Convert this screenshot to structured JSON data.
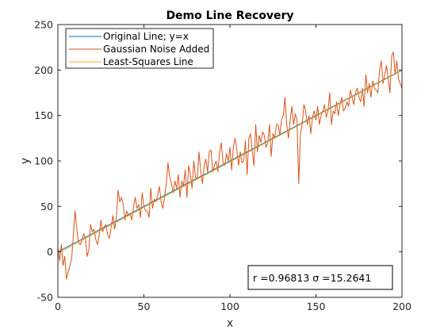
{
  "chart_data": {
    "type": "line",
    "title": "Demo Line Recovery",
    "xlabel": "x",
    "ylabel": "y",
    "xlim": [
      0,
      200
    ],
    "ylim": [
      -50,
      250
    ],
    "xticks": [
      0,
      50,
      100,
      150,
      200
    ],
    "yticks": [
      -50,
      0,
      50,
      100,
      150,
      200,
      250
    ],
    "xtick_labels": [
      "0",
      "50",
      "100",
      "150",
      "200"
    ],
    "ytick_labels": [
      "-50",
      "0",
      "50",
      "100",
      "150",
      "200",
      "250"
    ],
    "grid": false,
    "legend_position": "top-left",
    "series": [
      {
        "name": "Original Line; y=x",
        "color": "#0072bd",
        "x": [
          0,
          200
        ],
        "y": [
          0,
          200
        ]
      },
      {
        "name": "Gaussian Noise Added",
        "color": "#d95319",
        "x": [
          0,
          1,
          2,
          3,
          4,
          5,
          6,
          7,
          8,
          9,
          10,
          11,
          12,
          13,
          14,
          15,
          16,
          17,
          18,
          19,
          20,
          21,
          22,
          23,
          24,
          25,
          26,
          27,
          28,
          29,
          30,
          31,
          32,
          33,
          34,
          35,
          36,
          37,
          38,
          39,
          40,
          41,
          42,
          43,
          44,
          45,
          46,
          47,
          48,
          49,
          50,
          51,
          52,
          53,
          54,
          55,
          56,
          57,
          58,
          59,
          60,
          61,
          62,
          63,
          64,
          65,
          66,
          67,
          68,
          69,
          70,
          71,
          72,
          73,
          74,
          75,
          76,
          77,
          78,
          79,
          80,
          81,
          82,
          83,
          84,
          85,
          86,
          87,
          88,
          89,
          90,
          91,
          92,
          93,
          94,
          95,
          96,
          97,
          98,
          99,
          100,
          101,
          102,
          103,
          104,
          105,
          106,
          107,
          108,
          109,
          110,
          111,
          112,
          113,
          114,
          115,
          116,
          117,
          118,
          119,
          120,
          121,
          122,
          123,
          124,
          125,
          126,
          127,
          128,
          129,
          130,
          131,
          132,
          133,
          134,
          135,
          136,
          137,
          138,
          139,
          140,
          141,
          142,
          143,
          144,
          145,
          146,
          147,
          148,
          149,
          150,
          151,
          152,
          153,
          154,
          155,
          156,
          157,
          158,
          159,
          160,
          161,
          162,
          163,
          164,
          165,
          166,
          167,
          168,
          169,
          170,
          171,
          172,
          173,
          174,
          175,
          176,
          177,
          178,
          179,
          180,
          181,
          182,
          183,
          184,
          185,
          186,
          187,
          188,
          189,
          190,
          191,
          192,
          193,
          194,
          195,
          196,
          197,
          198,
          199,
          200
        ],
        "y": [
          5,
          -10,
          8,
          -15,
          -5,
          -30,
          -22,
          -15,
          -8,
          18,
          45,
          25,
          10,
          8,
          12,
          20,
          15,
          -5,
          2,
          30,
          22,
          25,
          14,
          8,
          18,
          35,
          22,
          28,
          30,
          18,
          15,
          28,
          40,
          25,
          38,
          68,
          55,
          60,
          52,
          35,
          45,
          40,
          42,
          35,
          50,
          60,
          48,
          52,
          38,
          65,
          50,
          45,
          45,
          38,
          70,
          48,
          58,
          55,
          62,
          72,
          55,
          48,
          60,
          75,
          98,
          82,
          75,
          65,
          78,
          70,
          85,
          60,
          78,
          72,
          90,
          60,
          95,
          85,
          70,
          100,
          82,
          80,
          110,
          90,
          75,
          95,
          102,
          88,
          110,
          112,
          88,
          95,
          100,
          88,
          110,
          120,
          98,
          95,
          108,
          100,
          115,
          90,
          115,
          125,
          112,
          95,
          110,
          98,
          100,
          122,
          85,
          125,
          130,
          110,
          95,
          140,
          110,
          128,
          120,
          132,
          128,
          115,
          120,
          140,
          105,
          130,
          125,
          140,
          140,
          128,
          145,
          150,
          170,
          140,
          125,
          145,
          160,
          140,
          152,
          145,
          75,
          130,
          140,
          162,
          155,
          140,
          150,
          130,
          148,
          155,
          145,
          160,
          140,
          150,
          155,
          162,
          148,
          155,
          175,
          140,
          155,
          152,
          165,
          150,
          162,
          170,
          155,
          158,
          165,
          160,
          178,
          170,
          162,
          175,
          180,
          170,
          165,
          180,
          160,
          195,
          175,
          185,
          170,
          188,
          180,
          178,
          175,
          200,
          210,
          185,
          195,
          205,
          190,
          175,
          215,
          220,
          195,
          210,
          190,
          185,
          180
        ]
      },
      {
        "name": "Least-Squares Line",
        "color": "#edb120",
        "x": [
          0,
          200
        ],
        "y": [
          -1.5,
          199.5
        ]
      }
    ],
    "annotation": {
      "text": "r =0.96813 σ =15.2641"
    }
  }
}
